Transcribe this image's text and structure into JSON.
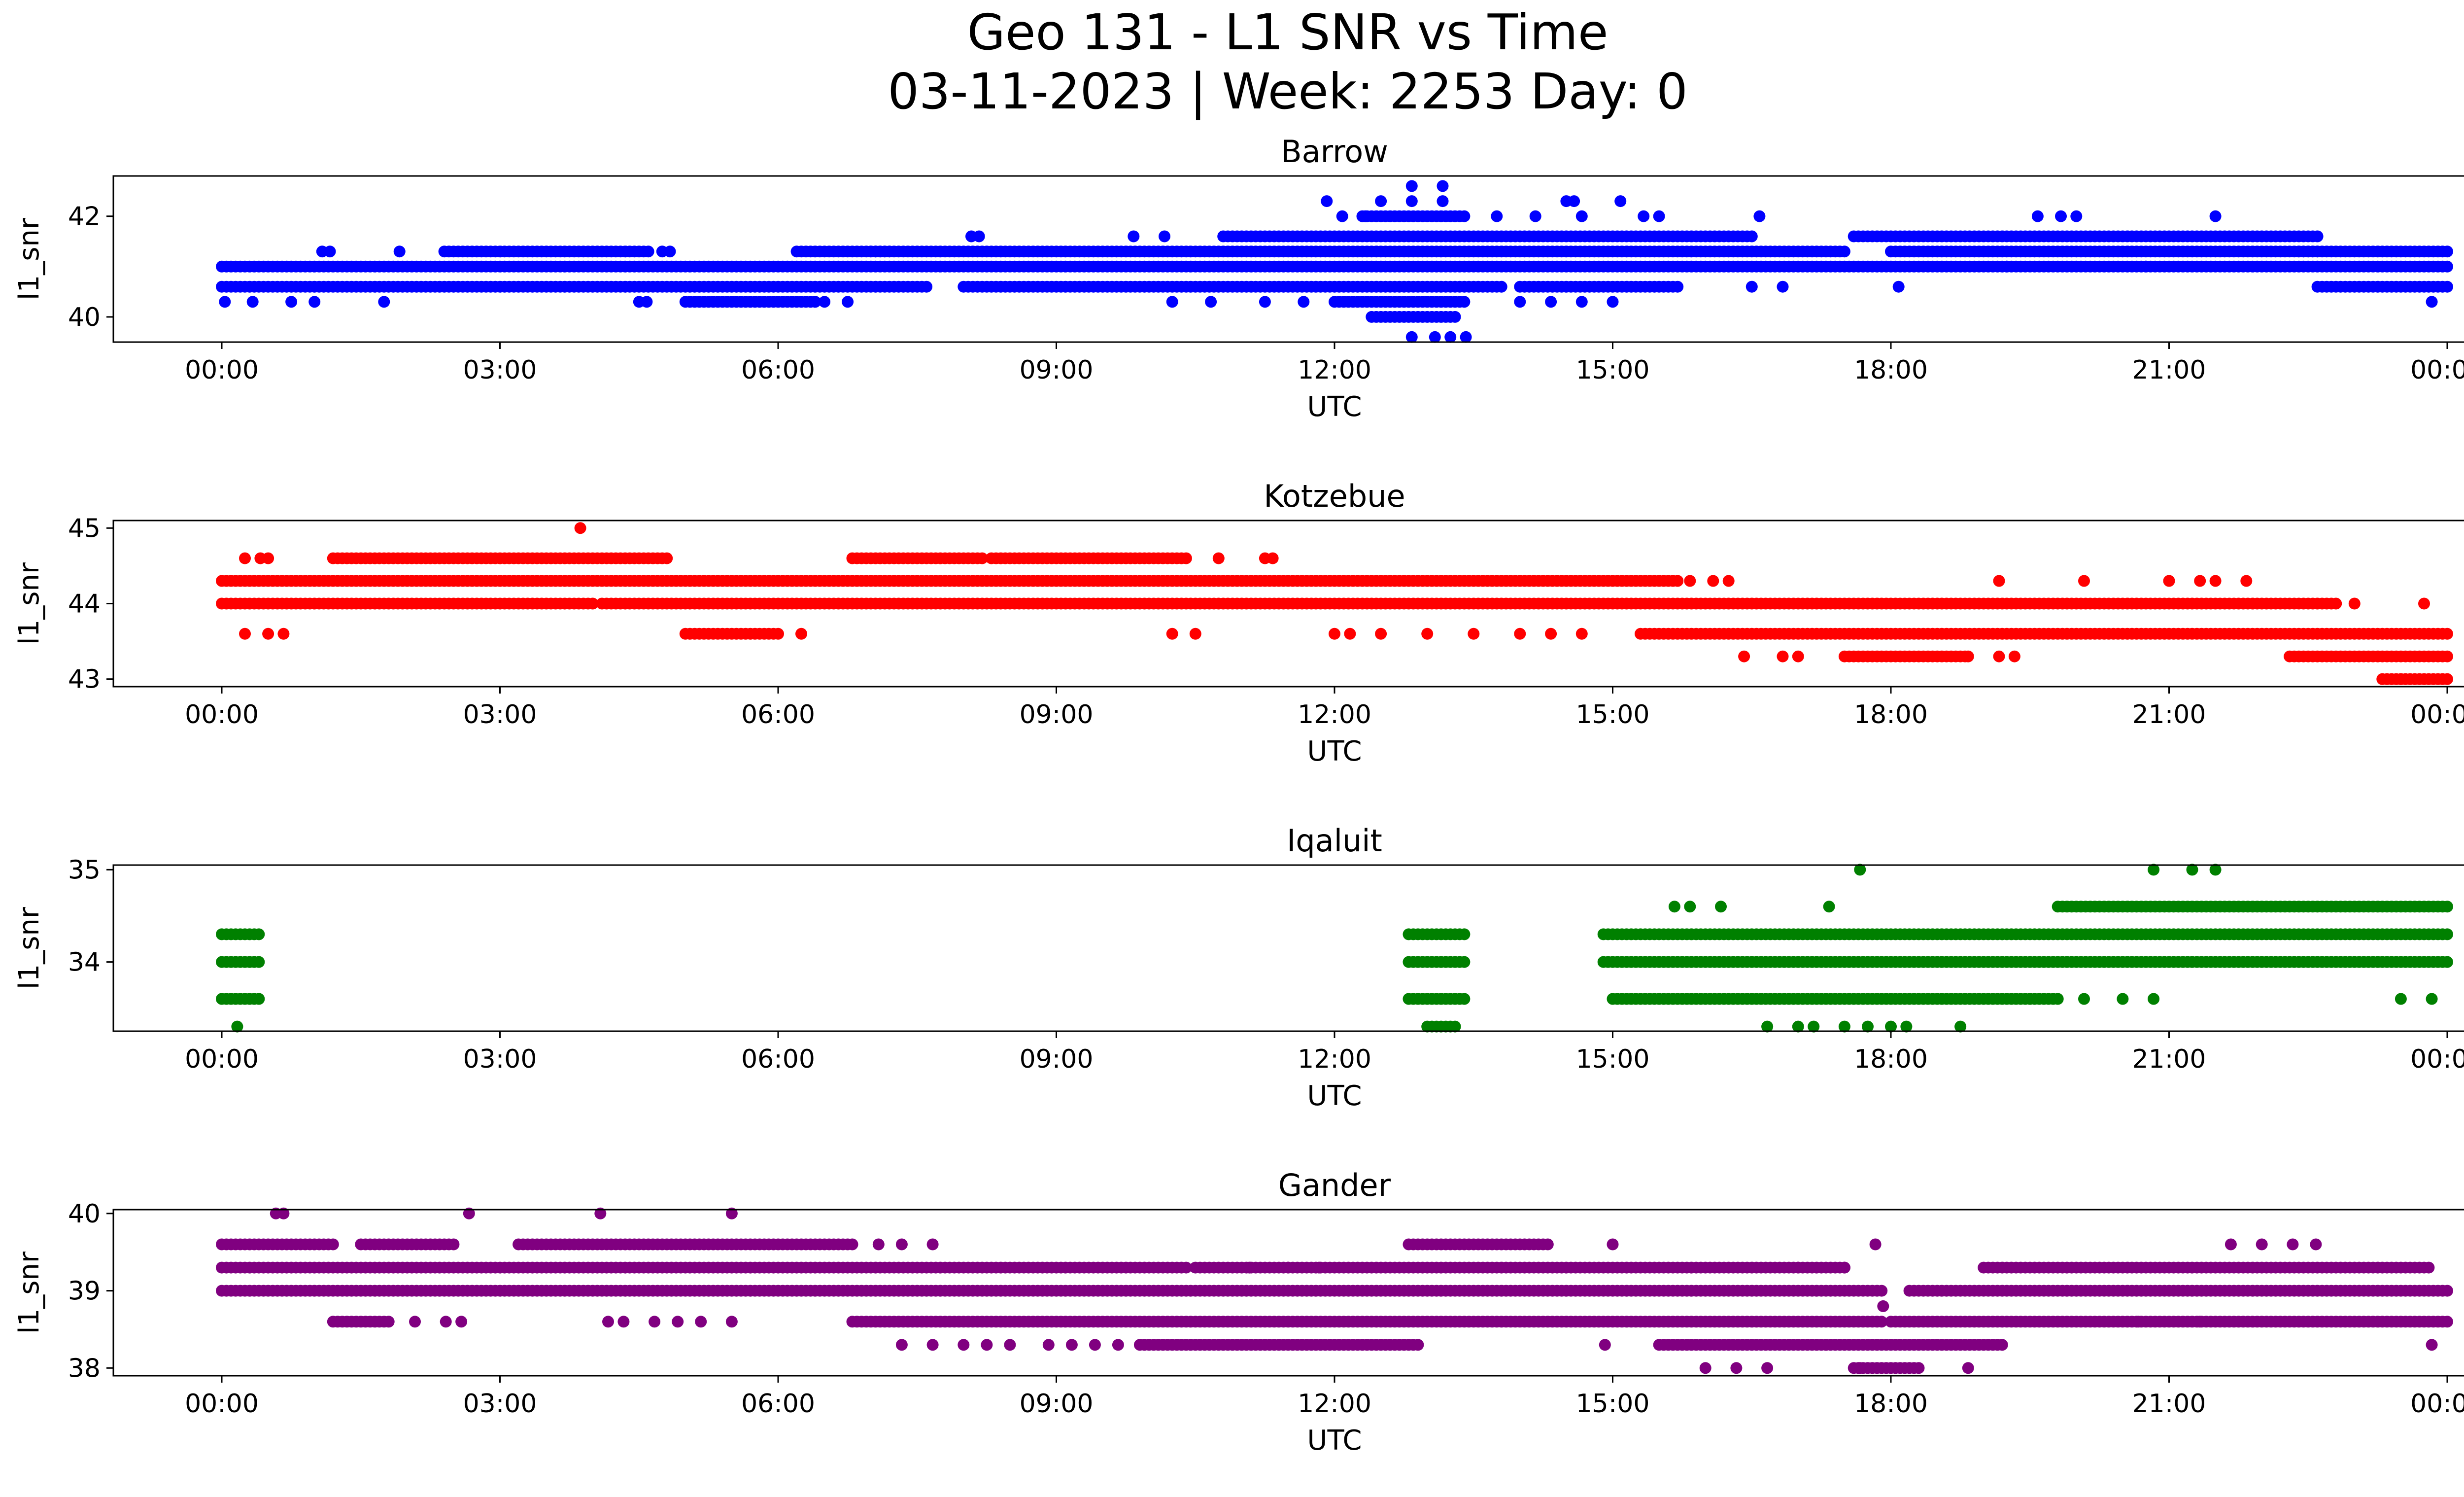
{
  "figure": {
    "title_line1": "Geo 131 - L1 SNR vs Time",
    "title_line2": "03-11-2023 | Week: 2253 Day: 0"
  },
  "chart_data": [
    {
      "type": "scatter",
      "title": "Barrow",
      "xlabel": "UTC",
      "ylabel": "l1_snr",
      "color": "#0000ff",
      "xlim": [
        "00:00",
        "24:00"
      ],
      "xticks": [
        "00:00",
        "03:00",
        "06:00",
        "09:00",
        "12:00",
        "15:00",
        "18:00",
        "21:00",
        "00:00"
      ],
      "ylim": [
        39.5,
        42.8
      ],
      "yticks": [
        40,
        42
      ],
      "grid": false,
      "bands": [
        {
          "y": 41.0,
          "x": [
            [
              0.0,
              24.0
            ]
          ]
        },
        {
          "y": 40.6,
          "x": [
            [
              0.0,
              7.6
            ],
            [
              8.0,
              13.8
            ],
            [
              14.0,
              15.7
            ],
            [
              22.6,
              24.0
            ]
          ]
        },
        {
          "y": 41.3,
          "x": [
            [
              2.4,
              4.6
            ],
            [
              6.2,
              7.2
            ],
            [
              7.0,
              17.5
            ],
            [
              18.0,
              22.6
            ],
            [
              22.4,
              24.0
            ]
          ]
        },
        {
          "y": 41.6,
          "x": [
            [
              10.8,
              16.5
            ],
            [
              17.6,
              22.6
            ]
          ]
        },
        {
          "y": 40.3,
          "x": [
            [
              5.0,
              6.4
            ],
            [
              12.0,
              13.4
            ]
          ]
        },
        {
          "y": 40.0,
          "x": [
            [
              12.4,
              13.3
            ]
          ]
        },
        {
          "y": 42.0,
          "x": [
            [
              12.3,
              13.4
            ]
          ]
        }
      ],
      "points": [
        [
          "00:02",
          40.3
        ],
        [
          "00:20",
          40.3
        ],
        [
          "00:45",
          40.3
        ],
        [
          "01:00",
          40.3
        ],
        [
          "01:45",
          40.3
        ],
        [
          "01:05",
          41.3
        ],
        [
          "01:10",
          41.3
        ],
        [
          "01:55",
          41.3
        ],
        [
          "04:30",
          40.3
        ],
        [
          "04:35",
          40.3
        ],
        [
          "04:45",
          41.3
        ],
        [
          "04:50",
          41.3
        ],
        [
          "06:30",
          40.3
        ],
        [
          "06:45",
          40.3
        ],
        [
          "08:05",
          41.6
        ],
        [
          "08:10",
          41.6
        ],
        [
          "09:50",
          41.6
        ],
        [
          "10:10",
          41.6
        ],
        [
          "10:15",
          40.3
        ],
        [
          "10:40",
          40.3
        ],
        [
          "11:15",
          40.3
        ],
        [
          "11:40",
          40.3
        ],
        [
          "11:55",
          42.3
        ],
        [
          "12:05",
          42.0
        ],
        [
          "12:20",
          42.0
        ],
        [
          "12:30",
          42.3
        ],
        [
          "12:50",
          42.6
        ],
        [
          "12:50",
          42.3
        ],
        [
          "13:10",
          42.6
        ],
        [
          "13:10",
          42.3
        ],
        [
          "12:50",
          39.6
        ],
        [
          "13:05",
          39.6
        ],
        [
          "13:15",
          39.6
        ],
        [
          "13:25",
          39.6
        ],
        [
          "13:45",
          42.0
        ],
        [
          "14:10",
          42.0
        ],
        [
          "14:30",
          42.3
        ],
        [
          "14:35",
          42.3
        ],
        [
          "14:40",
          42.0
        ],
        [
          "15:05",
          42.3
        ],
        [
          "15:20",
          42.0
        ],
        [
          "15:30",
          42.0
        ],
        [
          "14:00",
          40.3
        ],
        [
          "14:20",
          40.3
        ],
        [
          "14:40",
          40.3
        ],
        [
          "15:00",
          40.3
        ],
        [
          "16:30",
          40.6
        ],
        [
          "16:35",
          42.0
        ],
        [
          "16:50",
          40.6
        ],
        [
          "18:05",
          40.6
        ],
        [
          "19:35",
          42.0
        ],
        [
          "19:50",
          42.0
        ],
        [
          "20:00",
          42.0
        ],
        [
          "21:30",
          42.0
        ],
        [
          "19:15",
          41.0
        ],
        [
          "20:45",
          41.0
        ],
        [
          "23:50",
          40.3
        ]
      ]
    },
    {
      "type": "scatter",
      "title": "Kotzebue",
      "xlabel": "UTC",
      "ylabel": "l1_snr",
      "color": "#ff0000",
      "xlim": [
        "00:00",
        "24:00"
      ],
      "xticks": [
        "00:00",
        "03:00",
        "06:00",
        "09:00",
        "12:00",
        "15:00",
        "18:00",
        "21:00",
        "00:00"
      ],
      "ylim": [
        42.9,
        45.1
      ],
      "yticks": [
        43,
        44,
        45
      ],
      "grid": false,
      "bands": [
        {
          "y": 44.3,
          "x": [
            [
              0.0,
              15.7
            ]
          ]
        },
        {
          "y": 44.0,
          "x": [
            [
              0.0,
              4.0
            ],
            [
              4.1,
              22.8
            ]
          ]
        },
        {
          "y": 44.6,
          "x": [
            [
              1.2,
              4.8
            ],
            [
              6.8,
              8.2
            ],
            [
              8.3,
              10.4
            ]
          ]
        },
        {
          "y": 43.6,
          "x": [
            [
              5.0,
              6.0
            ],
            [
              15.3,
              24.0
            ]
          ]
        },
        {
          "y": 43.3,
          "x": [
            [
              17.5,
              18.8
            ],
            [
              22.3,
              24.0
            ]
          ]
        },
        {
          "y": 43.0,
          "x": [
            [
              23.3,
              24.0
            ]
          ]
        }
      ],
      "points": [
        [
          "00:15",
          44.6
        ],
        [
          "00:25",
          44.6
        ],
        [
          "00:30",
          44.6
        ],
        [
          "00:15",
          43.6
        ],
        [
          "00:30",
          43.6
        ],
        [
          "00:40",
          43.6
        ],
        [
          "03:52",
          45.0
        ],
        [
          "06:15",
          43.6
        ],
        [
          "10:15",
          43.6
        ],
        [
          "10:30",
          43.6
        ],
        [
          "10:45",
          44.6
        ],
        [
          "11:15",
          44.6
        ],
        [
          "11:20",
          44.6
        ],
        [
          "12:00",
          43.6
        ],
        [
          "12:10",
          43.6
        ],
        [
          "12:30",
          43.6
        ],
        [
          "13:00",
          43.6
        ],
        [
          "13:30",
          43.6
        ],
        [
          "14:00",
          43.6
        ],
        [
          "14:20",
          43.6
        ],
        [
          "14:40",
          43.6
        ],
        [
          "15:50",
          44.3
        ],
        [
          "16:05",
          44.3
        ],
        [
          "16:15",
          44.3
        ],
        [
          "16:25",
          43.3
        ],
        [
          "16:50",
          43.3
        ],
        [
          "17:00",
          43.3
        ],
        [
          "18:50",
          43.3
        ],
        [
          "19:10",
          43.3
        ],
        [
          "19:20",
          43.3
        ],
        [
          "19:10",
          44.3
        ],
        [
          "20:05",
          44.3
        ],
        [
          "21:00",
          44.3
        ],
        [
          "21:20",
          44.3
        ],
        [
          "21:30",
          44.3
        ],
        [
          "21:50",
          44.3
        ],
        [
          "23:45",
          44.0
        ],
        [
          "23:00",
          44.0
        ],
        [
          "23:30",
          43.0
        ]
      ]
    },
    {
      "type": "scatter",
      "title": "Iqaluit",
      "xlabel": "UTC",
      "ylabel": "l1_snr",
      "color": "#008000",
      "xlim": [
        "00:00",
        "24:00"
      ],
      "xticks": [
        "00:00",
        "03:00",
        "06:00",
        "09:00",
        "12:00",
        "15:00",
        "18:00",
        "21:00",
        "00:00"
      ],
      "ylim": [
        33.25,
        35.05
      ],
      "yticks": [
        34,
        35
      ],
      "grid": false,
      "bands": [
        {
          "y": 34.3,
          "x": [
            [
              0.0,
              0.4
            ],
            [
              12.8,
              13.4
            ],
            [
              14.9,
              24.0
            ]
          ]
        },
        {
          "y": 34.0,
          "x": [
            [
              0.0,
              0.4
            ],
            [
              12.8,
              13.4
            ],
            [
              14.9,
              24.0
            ]
          ]
        },
        {
          "y": 33.6,
          "x": [
            [
              0.0,
              0.4
            ],
            [
              12.8,
              13.4
            ],
            [
              15.0,
              19.8
            ]
          ]
        },
        {
          "y": 34.6,
          "x": [
            [
              19.8,
              24.0
            ]
          ]
        },
        {
          "y": 33.3,
          "x": [
            [
              13.0,
              13.3
            ]
          ]
        }
      ],
      "points": [
        [
          "00:10",
          33.3
        ],
        [
          "15:40",
          34.6
        ],
        [
          "15:50",
          34.6
        ],
        [
          "16:10",
          34.6
        ],
        [
          "17:20",
          34.6
        ],
        [
          "17:40",
          35.0
        ],
        [
          "16:40",
          33.3
        ],
        [
          "17:00",
          33.3
        ],
        [
          "17:10",
          33.3
        ],
        [
          "17:30",
          33.3
        ],
        [
          "17:45",
          33.3
        ],
        [
          "18:00",
          33.3
        ],
        [
          "18:10",
          33.3
        ],
        [
          "18:45",
          33.3
        ],
        [
          "19:30",
          33.6
        ],
        [
          "20:05",
          33.6
        ],
        [
          "20:30",
          33.6
        ],
        [
          "20:50",
          33.6
        ],
        [
          "20:50",
          35.0
        ],
        [
          "21:15",
          35.0
        ],
        [
          "21:30",
          35.0
        ],
        [
          "23:30",
          33.6
        ],
        [
          "23:50",
          33.6
        ]
      ]
    },
    {
      "type": "scatter",
      "title": "Gander",
      "xlabel": "UTC",
      "ylabel": "l1_snr",
      "color": "#800080",
      "xlim": [
        "00:00",
        "24:00"
      ],
      "xticks": [
        "00:00",
        "03:00",
        "06:00",
        "09:00",
        "12:00",
        "15:00",
        "18:00",
        "21:00",
        "00:00"
      ],
      "ylim": [
        37.9,
        40.05
      ],
      "yticks": [
        38,
        39,
        40
      ],
      "grid": false,
      "bands": [
        {
          "y": 39.0,
          "x": [
            [
              0.0,
              17.9
            ],
            [
              18.2,
              24.0
            ]
          ]
        },
        {
          "y": 39.3,
          "x": [
            [
              0.0,
              10.4
            ],
            [
              10.5,
              17.5
            ],
            [
              19.0,
              23.8
            ]
          ]
        },
        {
          "y": 39.6,
          "x": [
            [
              0.0,
              1.2
            ],
            [
              1.5,
              2.5
            ],
            [
              3.2,
              6.8
            ],
            [
              12.8,
              14.3
            ]
          ]
        },
        {
          "y": 38.6,
          "x": [
            [
              1.2,
              1.8
            ],
            [
              6.8,
              17.9
            ],
            [
              18.0,
              24.0
            ]
          ]
        },
        {
          "y": 38.3,
          "x": [
            [
              9.9,
              12.9
            ],
            [
              15.5,
              17.3
            ],
            [
              17.3,
              19.2
            ]
          ]
        },
        {
          "y": 38.0,
          "x": [
            [
              17.6,
              18.3
            ]
          ]
        }
      ],
      "points": [
        [
          "00:35",
          40.0
        ],
        [
          "00:40",
          40.0
        ],
        [
          "02:40",
          40.0
        ],
        [
          "04:05",
          40.0
        ],
        [
          "05:30",
          40.0
        ],
        [
          "02:05",
          38.6
        ],
        [
          "02:25",
          38.6
        ],
        [
          "02:35",
          38.6
        ],
        [
          "04:10",
          38.6
        ],
        [
          "04:20",
          38.6
        ],
        [
          "04:40",
          38.6
        ],
        [
          "04:55",
          38.6
        ],
        [
          "05:10",
          38.6
        ],
        [
          "05:30",
          38.6
        ],
        [
          "07:20",
          38.3
        ],
        [
          "07:40",
          38.3
        ],
        [
          "08:00",
          38.3
        ],
        [
          "08:15",
          38.3
        ],
        [
          "08:30",
          38.3
        ],
        [
          "08:55",
          38.3
        ],
        [
          "09:10",
          38.3
        ],
        [
          "09:25",
          38.3
        ],
        [
          "09:40",
          38.3
        ],
        [
          "07:05",
          39.6
        ],
        [
          "07:20",
          39.6
        ],
        [
          "07:40",
          39.6
        ],
        [
          "11:05",
          39.3
        ],
        [
          "11:30",
          39.3
        ],
        [
          "11:50",
          39.3
        ],
        [
          "14:55",
          38.3
        ],
        [
          "15:00",
          39.6
        ],
        [
          "16:00",
          38.0
        ],
        [
          "16:20",
          38.0
        ],
        [
          "16:40",
          38.0
        ],
        [
          "17:00",
          39.3
        ],
        [
          "17:30",
          39.3
        ],
        [
          "17:40",
          38.0
        ],
        [
          "17:55",
          38.8
        ],
        [
          "17:50",
          39.6
        ],
        [
          "18:50",
          38.0
        ],
        [
          "20:40",
          38.6
        ],
        [
          "21:20",
          38.6
        ],
        [
          "21:40",
          39.6
        ],
        [
          "22:00",
          39.6
        ],
        [
          "22:20",
          39.6
        ],
        [
          "22:35",
          39.6
        ],
        [
          "23:50",
          38.3
        ]
      ]
    }
  ]
}
